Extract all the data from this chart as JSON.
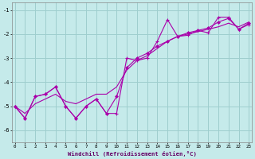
{
  "xlabel": "Windchill (Refroidissement éolien,°C)",
  "x_ticks": [
    0,
    1,
    2,
    3,
    4,
    5,
    6,
    7,
    8,
    9,
    10,
    11,
    12,
    13,
    14,
    15,
    16,
    17,
    18,
    19,
    20,
    21,
    22,
    23
  ],
  "xlim": [
    -0.3,
    23.3
  ],
  "ylim": [
    -6.5,
    -0.7
  ],
  "yticks": [
    -6,
    -5,
    -4,
    -3,
    -2,
    -1
  ],
  "bg_color": "#c5eaea",
  "grid_color": "#9ecece",
  "line_color": "#aa00aa",
  "line1_x": [
    0,
    1,
    2,
    3,
    4,
    5,
    6,
    7,
    8,
    9,
    10,
    11,
    12,
    13,
    14,
    15,
    16,
    17,
    18,
    19,
    20,
    21,
    22,
    23
  ],
  "line1_y": [
    -5.0,
    -5.5,
    -4.6,
    -4.5,
    -4.2,
    -5.0,
    -5.5,
    -5.0,
    -4.7,
    -5.3,
    -5.3,
    -3.0,
    -3.1,
    -3.0,
    -2.3,
    -1.4,
    -2.1,
    -2.05,
    -1.85,
    -1.95,
    -1.3,
    -1.3,
    -1.8,
    -1.6
  ],
  "line2_x": [
    0,
    1,
    2,
    3,
    4,
    5,
    6,
    7,
    8,
    9,
    10,
    11,
    12,
    13,
    14,
    15,
    16,
    17,
    18,
    19,
    20,
    21,
    22,
    23
  ],
  "line2_y": [
    -5.0,
    -5.5,
    -4.6,
    -4.5,
    -4.2,
    -5.0,
    -5.5,
    -5.0,
    -4.7,
    -5.3,
    -4.6,
    -3.4,
    -3.0,
    -2.8,
    -2.5,
    -2.3,
    -2.1,
    -1.95,
    -1.85,
    -1.75,
    -1.5,
    -1.35,
    -1.8,
    -1.55
  ],
  "line3_x": [
    0,
    1,
    2,
    3,
    4,
    5,
    6,
    7,
    8,
    9,
    10,
    11,
    12,
    13,
    14,
    15,
    16,
    17,
    18,
    19,
    20,
    21,
    22,
    23
  ],
  "line3_y": [
    -5.0,
    -5.3,
    -4.9,
    -4.7,
    -4.5,
    -4.8,
    -4.9,
    -4.7,
    -4.5,
    -4.5,
    -4.2,
    -3.5,
    -3.1,
    -2.9,
    -2.6,
    -2.3,
    -2.1,
    -2.0,
    -1.9,
    -1.8,
    -1.7,
    -1.55,
    -1.7,
    -1.5
  ]
}
